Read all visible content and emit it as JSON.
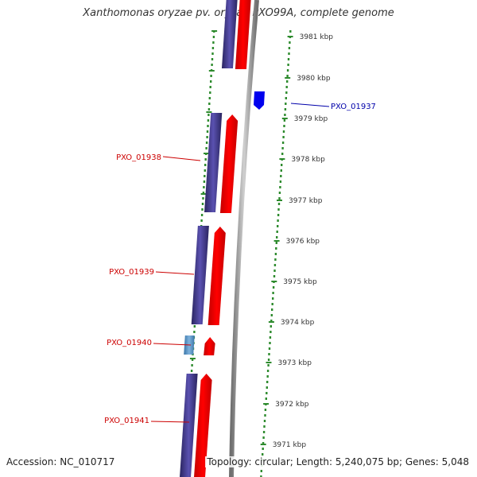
{
  "title": "Xanthomonas oryzae pv. oryzae PXO99A, complete genome",
  "footer": {
    "accession": "Accession: NC_010717",
    "summary": "Topology: circular; Length: 5,240,075 bp; Genes: 5,048"
  },
  "colors": {
    "forward_cds": "#ff0000",
    "reverse_cds": "#3b3486",
    "reverse_gene_small": "#4f8fc4",
    "forward_gene_small": "#0000ee",
    "backbone": "#888888",
    "gc_ticks": "#2e8b2e",
    "label_red": "#cc0000",
    "label_blue": "#0000aa"
  },
  "ticks": [
    {
      "label": "3981 kbp",
      "kbp": 3981
    },
    {
      "label": "3980 kbp",
      "kbp": 3980
    },
    {
      "label": "3979 kbp",
      "kbp": 3979
    },
    {
      "label": "3978 kbp",
      "kbp": 3978
    },
    {
      "label": "3977 kbp",
      "kbp": 3977
    },
    {
      "label": "3976 kbp",
      "kbp": 3976
    },
    {
      "label": "3975 kbp",
      "kbp": 3975
    },
    {
      "label": "3974 kbp",
      "kbp": 3974
    },
    {
      "label": "3973 kbp",
      "kbp": 3973
    },
    {
      "label": "3972 kbp",
      "kbp": 3972
    },
    {
      "label": "3971 kbp",
      "kbp": 3971
    }
  ],
  "genes": [
    {
      "label": "PXO_01937",
      "strand": "forward"
    },
    {
      "label": "PXO_01938",
      "strand": "reverse"
    },
    {
      "label": "PXO_01939",
      "strand": "reverse"
    },
    {
      "label": "PXO_01940",
      "strand": "reverse"
    },
    {
      "label": "PXO_01941",
      "strand": "reverse"
    }
  ]
}
